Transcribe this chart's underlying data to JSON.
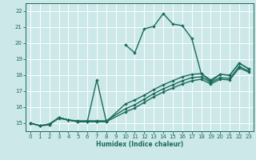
{
  "bg_color": "#cce8e8",
  "grid_color": "#ffffff",
  "line_color": "#1a6b5a",
  "xlabel": "Humidex (Indice chaleur)",
  "xlim": [
    -0.5,
    23.5
  ],
  "ylim": [
    14.5,
    22.5
  ],
  "yticks": [
    15,
    16,
    17,
    18,
    19,
    20,
    21,
    22
  ],
  "xticks": [
    0,
    1,
    2,
    3,
    4,
    5,
    6,
    7,
    8,
    9,
    10,
    11,
    12,
    13,
    14,
    15,
    16,
    17,
    18,
    19,
    20,
    21,
    22,
    23
  ],
  "series": [
    {
      "x": [
        0,
        1,
        2,
        3,
        4,
        5,
        6,
        7,
        8,
        10,
        11,
        12,
        13,
        14,
        15,
        16,
        17,
        18,
        19,
        20,
        21,
        22,
        23
      ],
      "y": [
        15.0,
        14.85,
        14.9,
        15.35,
        15.2,
        15.1,
        15.1,
        17.7,
        15.1,
        19.9,
        19.4,
        20.9,
        21.05,
        21.85,
        21.2,
        21.1,
        20.3,
        18.1,
        17.6,
        18.05,
        18.0,
        18.75,
        18.4
      ],
      "lw": 1.0,
      "ms": 2.2
    },
    {
      "x": [
        0,
        1,
        2,
        3,
        4,
        5,
        6,
        7,
        8,
        10,
        11,
        12,
        13,
        14,
        15,
        16,
        17,
        18,
        19,
        20,
        21,
        22,
        23
      ],
      "y": [
        15.0,
        14.85,
        14.9,
        15.35,
        15.2,
        15.1,
        15.1,
        15.1,
        15.1,
        16.2,
        16.45,
        16.75,
        17.1,
        17.4,
        17.65,
        17.9,
        18.05,
        18.1,
        17.7,
        18.05,
        18.0,
        18.75,
        18.4
      ],
      "lw": 1.0,
      "ms": 2.2
    },
    {
      "x": [
        0,
        1,
        2,
        3,
        4,
        5,
        6,
        7,
        8,
        10,
        11,
        12,
        13,
        14,
        15,
        16,
        17,
        18,
        19,
        20,
        21,
        22,
        23
      ],
      "y": [
        15.0,
        14.85,
        14.95,
        15.35,
        15.2,
        15.15,
        15.15,
        15.15,
        15.15,
        15.9,
        16.15,
        16.5,
        16.85,
        17.15,
        17.4,
        17.65,
        17.85,
        17.9,
        17.55,
        17.85,
        17.8,
        18.55,
        18.25
      ],
      "lw": 1.0,
      "ms": 2.2
    },
    {
      "x": [
        0,
        1,
        2,
        3,
        4,
        5,
        6,
        7,
        8,
        10,
        11,
        12,
        13,
        14,
        15,
        16,
        17,
        18,
        19,
        20,
        21,
        22,
        23
      ],
      "y": [
        15.0,
        14.85,
        14.95,
        15.3,
        15.2,
        15.1,
        15.1,
        15.1,
        15.1,
        15.7,
        15.95,
        16.3,
        16.65,
        16.95,
        17.2,
        17.45,
        17.65,
        17.75,
        17.45,
        17.75,
        17.7,
        18.45,
        18.2
      ],
      "lw": 1.0,
      "ms": 2.2
    }
  ]
}
